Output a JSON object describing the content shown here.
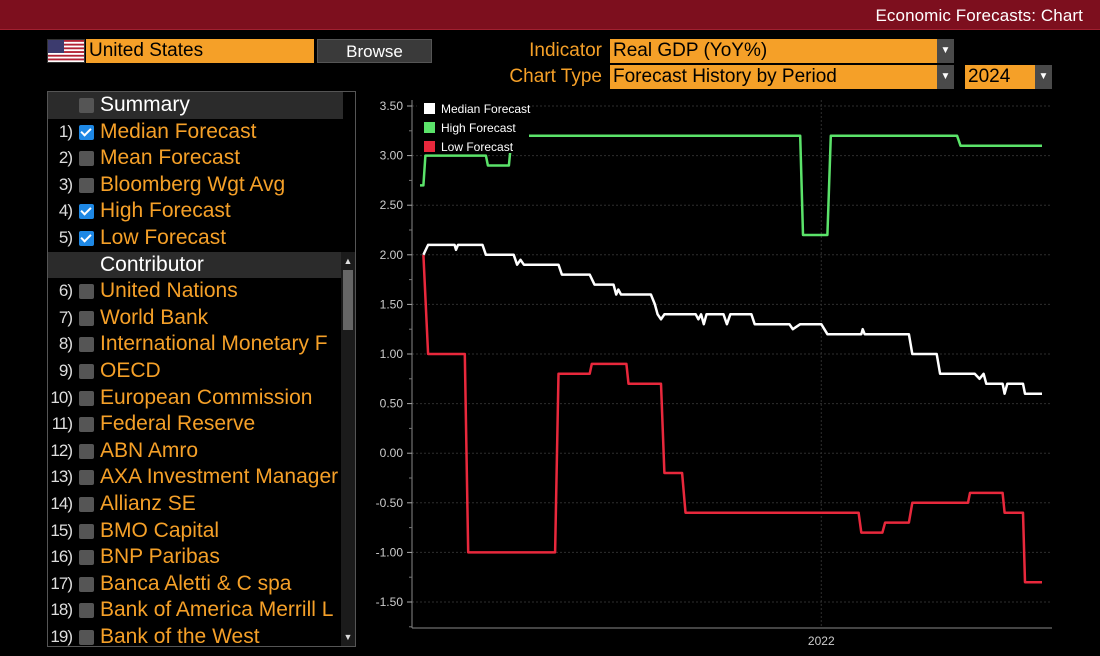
{
  "header": {
    "title": "Economic Forecasts: Chart"
  },
  "country": {
    "value": "United States",
    "flag_icon": "us-flag-icon"
  },
  "browse_button": "Browse",
  "indicator": {
    "label": "Indicator",
    "value": "Real GDP (YoY%)"
  },
  "chart_type": {
    "label": "Chart Type",
    "value": "Forecast History by Period"
  },
  "year": {
    "value": "2024"
  },
  "summary": {
    "header": "Summary",
    "items": [
      {
        "num": "1)",
        "label": "Median Forecast",
        "checked": true
      },
      {
        "num": "2)",
        "label": "Mean Forecast",
        "checked": false
      },
      {
        "num": "3)",
        "label": "Bloomberg Wgt Avg",
        "checked": false
      },
      {
        "num": "4)",
        "label": "High Forecast",
        "checked": true
      },
      {
        "num": "5)",
        "label": "Low Forecast",
        "checked": true
      }
    ]
  },
  "contributors": {
    "header": "Contributor",
    "items": [
      {
        "num": "6)",
        "label": "United Nations"
      },
      {
        "num": "7)",
        "label": "World Bank"
      },
      {
        "num": "8)",
        "label": "International Monetary F"
      },
      {
        "num": "9)",
        "label": "OECD"
      },
      {
        "num": "10)",
        "label": "European Commission"
      },
      {
        "num": "11)",
        "label": "Federal Reserve"
      },
      {
        "num": "12)",
        "label": "ABN Amro"
      },
      {
        "num": "13)",
        "label": "AXA Investment Manager"
      },
      {
        "num": "14)",
        "label": "Allianz SE"
      },
      {
        "num": "15)",
        "label": "BMO Capital"
      },
      {
        "num": "16)",
        "label": "BNP Paribas"
      },
      {
        "num": "17)",
        "label": "Banca Aletti & C spa"
      },
      {
        "num": "18)",
        "label": "Bank of America Merrill L"
      },
      {
        "num": "19)",
        "label": "Bank of the West"
      }
    ]
  },
  "colors": {
    "accent": "#f5a028",
    "topbar": "#7d0f1e",
    "median": "#ffffff",
    "high": "#5be36a",
    "low": "#e8283c"
  },
  "chart_data": {
    "type": "line",
    "xlabel": "",
    "ylabel": "",
    "x_tick_labels": [
      "2022"
    ],
    "y_ticks": [
      3.5,
      3.0,
      2.5,
      2.0,
      1.5,
      1.0,
      0.5,
      0.0,
      -0.5,
      -1.0,
      -1.5
    ],
    "y_tick_labels": [
      "3.50",
      "3.00",
      "2.50",
      "2.00",
      "1.50",
      "1.00",
      "0.50",
      "0.00",
      "-0.50",
      "-1.00",
      "-1.50"
    ],
    "ylim": [
      -1.75,
      3.6
    ],
    "x_range": [
      "2020-05-20",
      "2022-11-25"
    ],
    "x_tick_dates": [
      "2022-01-01"
    ],
    "legend_position": "top-left",
    "grid": "horizontal",
    "series": [
      {
        "name": "Median Forecast",
        "color": "#ffffff",
        "points": [
          [
            "2020-05-25",
            2.0
          ],
          [
            "2020-06-01",
            2.1
          ],
          [
            "2020-07-10",
            2.1
          ],
          [
            "2020-07-12",
            2.05
          ],
          [
            "2020-07-15",
            2.1
          ],
          [
            "2020-08-20",
            2.1
          ],
          [
            "2020-08-25",
            2.0
          ],
          [
            "2020-10-05",
            2.0
          ],
          [
            "2020-10-10",
            1.9
          ],
          [
            "2020-10-15",
            1.95
          ],
          [
            "2020-10-20",
            1.9
          ],
          [
            "2020-12-10",
            1.9
          ],
          [
            "2020-12-15",
            1.8
          ],
          [
            "2021-01-25",
            1.8
          ],
          [
            "2021-02-01",
            1.7
          ],
          [
            "2021-03-01",
            1.7
          ],
          [
            "2021-03-05",
            1.6
          ],
          [
            "2021-03-08",
            1.65
          ],
          [
            "2021-03-12",
            1.6
          ],
          [
            "2021-04-25",
            1.6
          ],
          [
            "2021-05-01",
            1.5
          ],
          [
            "2021-05-05",
            1.4
          ],
          [
            "2021-05-10",
            1.35
          ],
          [
            "2021-05-15",
            1.4
          ],
          [
            "2021-06-30",
            1.4
          ],
          [
            "2021-07-04",
            1.35
          ],
          [
            "2021-07-08",
            1.4
          ],
          [
            "2021-07-12",
            1.3
          ],
          [
            "2021-07-16",
            1.4
          ],
          [
            "2021-08-10",
            1.4
          ],
          [
            "2021-08-15",
            1.3
          ],
          [
            "2021-08-20",
            1.4
          ],
          [
            "2021-09-20",
            1.4
          ],
          [
            "2021-09-25",
            1.3
          ],
          [
            "2021-11-15",
            1.3
          ],
          [
            "2021-11-20",
            1.25
          ],
          [
            "2021-12-01",
            1.3
          ],
          [
            "2022-01-01",
            1.3
          ],
          [
            "2022-01-10",
            1.2
          ],
          [
            "2022-03-01",
            1.2
          ],
          [
            "2022-03-03",
            1.25
          ],
          [
            "2022-03-06",
            1.2
          ],
          [
            "2022-05-10",
            1.2
          ],
          [
            "2022-05-15",
            1.0
          ],
          [
            "2022-06-20",
            1.0
          ],
          [
            "2022-06-25",
            0.8
          ],
          [
            "2022-08-15",
            0.8
          ],
          [
            "2022-08-22",
            0.75
          ],
          [
            "2022-08-28",
            0.8
          ],
          [
            "2022-09-01",
            0.7
          ],
          [
            "2022-09-25",
            0.7
          ],
          [
            "2022-09-28",
            0.6
          ],
          [
            "2022-10-02",
            0.7
          ],
          [
            "2022-10-25",
            0.7
          ],
          [
            "2022-10-28",
            0.6
          ],
          [
            "2022-11-22",
            0.6
          ]
        ]
      },
      {
        "name": "High Forecast",
        "color": "#5be36a",
        "points": [
          [
            "2020-05-20",
            2.7
          ],
          [
            "2020-05-25",
            2.7
          ],
          [
            "2020-05-28",
            3.0
          ],
          [
            "2020-08-25",
            3.0
          ],
          [
            "2020-08-28",
            2.9
          ],
          [
            "2020-09-28",
            2.9
          ],
          [
            "2020-10-02",
            3.2
          ],
          [
            "2021-12-01",
            3.2
          ],
          [
            "2021-12-05",
            2.2
          ],
          [
            "2022-01-10",
            2.2
          ],
          [
            "2022-01-15",
            3.2
          ],
          [
            "2022-07-20",
            3.2
          ],
          [
            "2022-07-25",
            3.1
          ],
          [
            "2022-11-22",
            3.1
          ]
        ]
      },
      {
        "name": "Low Forecast",
        "color": "#e8283c",
        "points": [
          [
            "2020-05-25",
            2.0
          ],
          [
            "2020-06-01",
            1.0
          ],
          [
            "2020-07-25",
            1.0
          ],
          [
            "2020-07-30",
            -1.0
          ],
          [
            "2020-12-05",
            -1.0
          ],
          [
            "2020-12-10",
            0.8
          ],
          [
            "2021-01-25",
            0.8
          ],
          [
            "2021-01-28",
            0.9
          ],
          [
            "2021-03-20",
            0.9
          ],
          [
            "2021-03-23",
            0.7
          ],
          [
            "2021-05-10",
            0.7
          ],
          [
            "2021-05-15",
            -0.2
          ],
          [
            "2021-06-10",
            -0.2
          ],
          [
            "2021-06-15",
            -0.6
          ],
          [
            "2022-02-25",
            -0.6
          ],
          [
            "2022-03-01",
            -0.8
          ],
          [
            "2022-04-01",
            -0.8
          ],
          [
            "2022-04-05",
            -0.7
          ],
          [
            "2022-05-10",
            -0.7
          ],
          [
            "2022-05-15",
            -0.5
          ],
          [
            "2022-08-05",
            -0.5
          ],
          [
            "2022-08-08",
            -0.4
          ],
          [
            "2022-09-25",
            -0.4
          ],
          [
            "2022-09-28",
            -0.6
          ],
          [
            "2022-10-25",
            -0.6
          ],
          [
            "2022-10-28",
            -1.3
          ],
          [
            "2022-11-22",
            -1.3
          ]
        ]
      }
    ]
  }
}
